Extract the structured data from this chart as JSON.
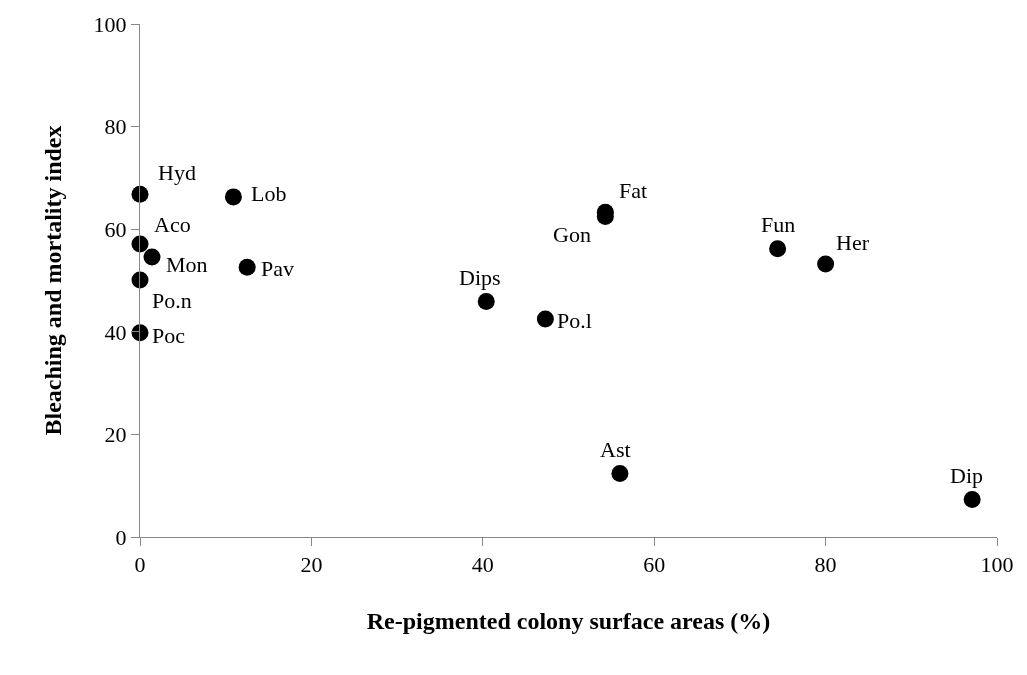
{
  "chart_data": {
    "type": "scatter",
    "xlabel": "Re-pigmented colony surface areas (%)",
    "ylabel": "Bleaching and mortality index",
    "x": [
      0.0,
      10.9,
      0.0,
      1.4,
      12.5,
      0.0,
      0.0,
      54.3,
      54.3,
      74.4,
      80.0,
      40.4,
      47.3,
      56.0,
      97.1
    ],
    "series": [
      {
        "color": "#000000",
        "values": [
          66.8,
          66.3,
          57.1,
          54.6,
          52.6,
          50.1,
          39.8,
          63.3,
          62.5,
          56.2,
          53.2,
          45.9,
          42.5,
          12.4,
          7.3
        ]
      }
    ],
    "annotations": [
      {
        "text": "Hyd",
        "x": 0.0,
        "y": 66.8
      },
      {
        "text": "Lob",
        "x": 10.9,
        "y": 66.3
      },
      {
        "text": "Aco",
        "x": 0.0,
        "y": 57.1
      },
      {
        "text": "Mon",
        "x": 1.4,
        "y": 54.6
      },
      {
        "text": "Pav",
        "x": 12.5,
        "y": 52.6
      },
      {
        "text": "Po.n",
        "x": 0.0,
        "y": 50.1
      },
      {
        "text": "Poc",
        "x": 0.0,
        "y": 39.8
      },
      {
        "text": "Fat",
        "x": 54.3,
        "y": 63.3
      },
      {
        "text": "Gon",
        "x": 54.3,
        "y": 62.5
      },
      {
        "text": "Fun",
        "x": 74.4,
        "y": 56.2
      },
      {
        "text": "Her",
        "x": 80.0,
        "y": 53.2
      },
      {
        "text": "Dips",
        "x": 40.4,
        "y": 45.9
      },
      {
        "text": "Po.l",
        "x": 47.3,
        "y": 42.5
      },
      {
        "text": "Ast",
        "x": 56.0,
        "y": 12.4
      },
      {
        "text": "Dip",
        "x": 97.1,
        "y": 7.3
      }
    ],
    "xlim": [
      0,
      100
    ],
    "xticks": [
      0,
      20,
      40,
      60,
      80,
      100
    ],
    "ylim": [
      0,
      100
    ],
    "yticks": [
      0,
      20,
      40,
      60,
      80,
      100
    ],
    "marker": "circle"
  }
}
